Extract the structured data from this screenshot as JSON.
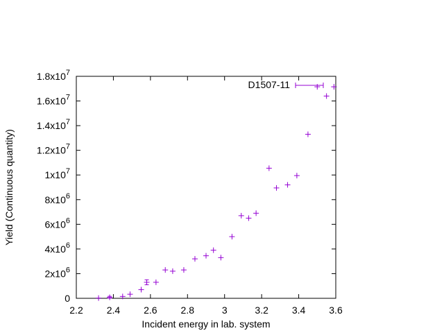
{
  "chart_data": {
    "type": "scatter",
    "xlabel": "Incident energy in lab. system",
    "ylabel": "Yield (Continuous quantity)",
    "xlim": [
      2.2,
      3.6
    ],
    "ylim": [
      0,
      18000000
    ],
    "x_ticks": [
      {
        "value": 2.2,
        "label": "2.2"
      },
      {
        "value": 2.4,
        "label": "2.4"
      },
      {
        "value": 2.6,
        "label": "2.6"
      },
      {
        "value": 2.8,
        "label": "2.8"
      },
      {
        "value": 3.0,
        "label": "3"
      },
      {
        "value": 3.2,
        "label": "3.2"
      },
      {
        "value": 3.4,
        "label": "3.4"
      },
      {
        "value": 3.6,
        "label": "3.6"
      }
    ],
    "y_ticks": [
      {
        "value": 0,
        "mant": "0",
        "exp": ""
      },
      {
        "value": 2000000,
        "mant": "2x10",
        "exp": "6"
      },
      {
        "value": 4000000,
        "mant": "4x10",
        "exp": "6"
      },
      {
        "value": 6000000,
        "mant": "6x10",
        "exp": "6"
      },
      {
        "value": 8000000,
        "mant": "8x10",
        "exp": "6"
      },
      {
        "value": 10000000,
        "mant": "1x10",
        "exp": "7"
      },
      {
        "value": 12000000,
        "mant": "1.2x10",
        "exp": "7"
      },
      {
        "value": 14000000,
        "mant": "1.4x10",
        "exp": "7"
      },
      {
        "value": 16000000,
        "mant": "1.6x10",
        "exp": "7"
      },
      {
        "value": 18000000,
        "mant": "1.8x10",
        "exp": "7"
      }
    ],
    "grid": false,
    "legend_position": "top-right",
    "series": [
      {
        "name": "D1507-11",
        "color": "#9400d3",
        "points": [
          {
            "x": 2.32,
            "y": 20000,
            "err": 0
          },
          {
            "x": 2.38,
            "y": 80000,
            "err": 80000
          },
          {
            "x": 2.45,
            "y": 150000,
            "err": 0
          },
          {
            "x": 2.49,
            "y": 330000,
            "err": 0
          },
          {
            "x": 2.55,
            "y": 700000,
            "err": 0
          },
          {
            "x": 2.58,
            "y": 1300000,
            "err": 200000
          },
          {
            "x": 2.63,
            "y": 1300000,
            "err": 0
          },
          {
            "x": 2.68,
            "y": 2300000,
            "err": 0
          },
          {
            "x": 2.72,
            "y": 2200000,
            "err": 0
          },
          {
            "x": 2.78,
            "y": 2300000,
            "err": 0
          },
          {
            "x": 2.84,
            "y": 3200000,
            "err": 0
          },
          {
            "x": 2.9,
            "y": 3450000,
            "err": 0
          },
          {
            "x": 2.94,
            "y": 3900000,
            "err": 0
          },
          {
            "x": 2.98,
            "y": 3300000,
            "err": 0
          },
          {
            "x": 3.04,
            "y": 5000000,
            "err": 0
          },
          {
            "x": 3.09,
            "y": 6700000,
            "err": 0
          },
          {
            "x": 3.13,
            "y": 6500000,
            "err": 0
          },
          {
            "x": 3.17,
            "y": 6900000,
            "err": 0
          },
          {
            "x": 3.24,
            "y": 10550000,
            "err": 0
          },
          {
            "x": 3.28,
            "y": 8950000,
            "err": 0
          },
          {
            "x": 3.34,
            "y": 9200000,
            "err": 0
          },
          {
            "x": 3.39,
            "y": 9950000,
            "err": 0
          },
          {
            "x": 3.45,
            "y": 13300000,
            "err": 0
          },
          {
            "x": 3.5,
            "y": 17150000,
            "err": 0
          },
          {
            "x": 3.55,
            "y": 16400000,
            "err": 0
          },
          {
            "x": 3.59,
            "y": 17150000,
            "err": 0
          }
        ]
      }
    ]
  }
}
